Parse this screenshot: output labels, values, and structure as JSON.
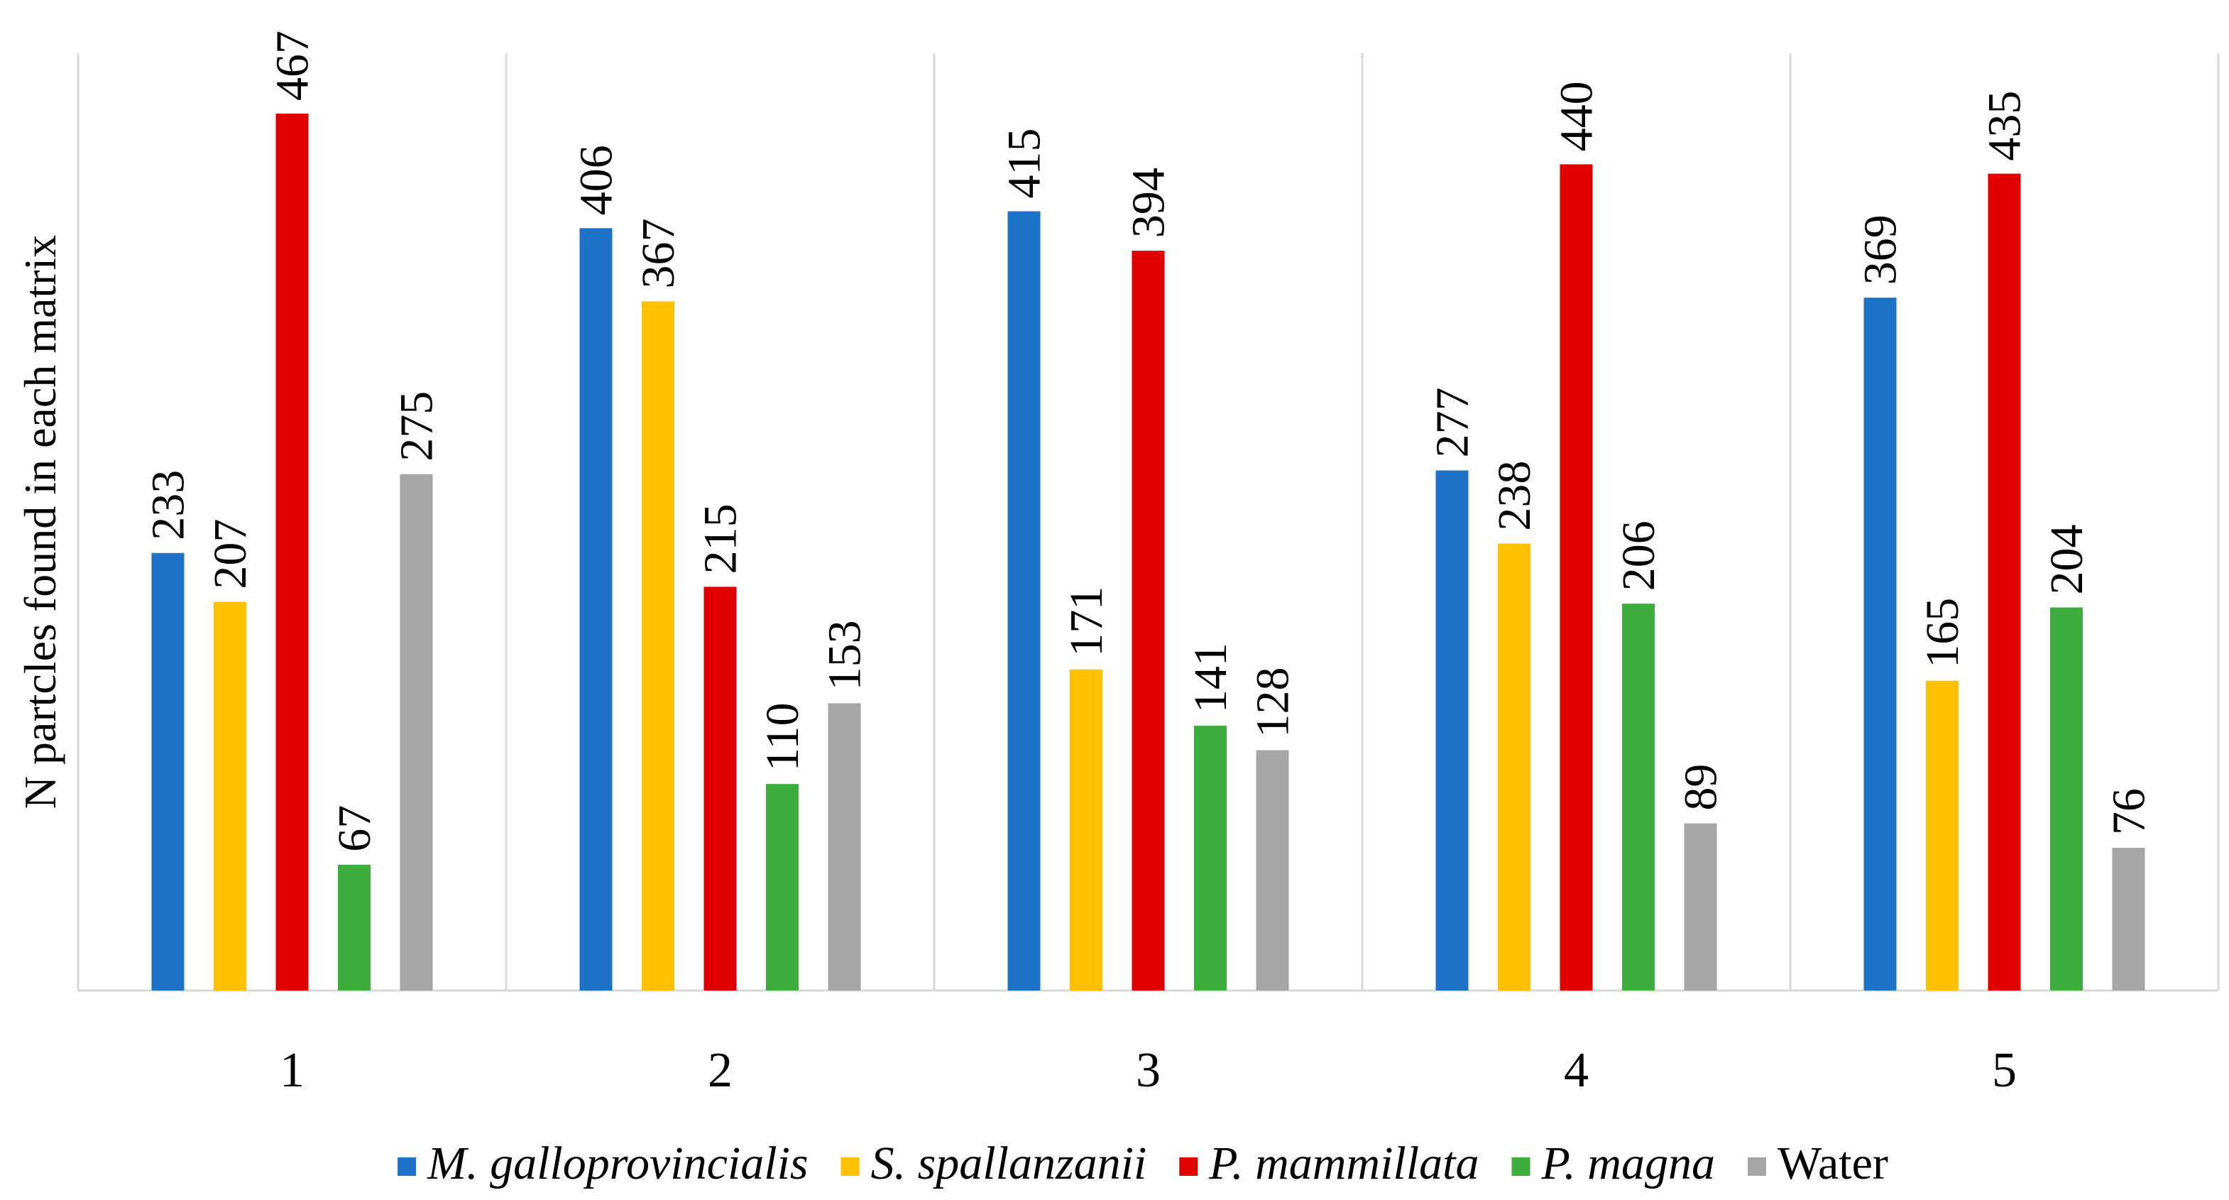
{
  "chart_data": {
    "type": "bar",
    "ylabel": "N partcles found in each matrix",
    "xlabel": "",
    "title": "",
    "grid": "vertical separators between categories",
    "legend_position": "bottom",
    "ylim": [
      0,
      520
    ],
    "categories": [
      "1",
      "2",
      "3",
      "4",
      "5"
    ],
    "series": [
      {
        "name": "M. galloprovincialis",
        "italic": true,
        "color": "#1E73C8",
        "values": [
          233,
          406,
          415,
          277,
          369
        ]
      },
      {
        "name": "S. spallanzanii",
        "italic": true,
        "color": "#FFC000",
        "values": [
          207,
          367,
          171,
          238,
          165
        ]
      },
      {
        "name": "P. mammillata",
        "italic": true,
        "color": "#E00000",
        "values": [
          467,
          215,
          394,
          440,
          435
        ]
      },
      {
        "name": "P. magna",
        "italic": true,
        "color": "#3DAE3D",
        "values": [
          67,
          110,
          141,
          206,
          204
        ]
      },
      {
        "name": "Water",
        "italic": false,
        "color": "#A6A6A6",
        "values": [
          275,
          153,
          128,
          89,
          76
        ]
      }
    ]
  }
}
